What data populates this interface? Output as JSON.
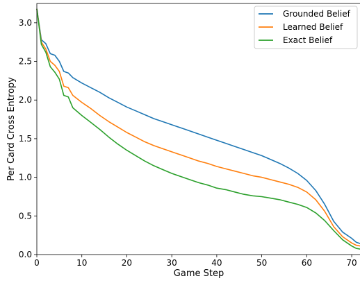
{
  "chart_data": {
    "type": "line",
    "title": "",
    "xlabel": "Game Step",
    "ylabel": "Per Card Cross Entropy",
    "xlim": [
      0,
      72
    ],
    "ylim": [
      0,
      3.25
    ],
    "xticks": [
      0,
      10,
      20,
      30,
      40,
      50,
      60,
      70
    ],
    "yticks": [
      0.0,
      0.5,
      1.0,
      1.5,
      2.0,
      2.5,
      3.0
    ],
    "xtick_labels": [
      "0",
      "10",
      "20",
      "30",
      "40",
      "50",
      "60",
      "70"
    ],
    "ytick_labels": [
      "0.0",
      "0.5",
      "1.0",
      "1.5",
      "2.0",
      "2.5",
      "3.0"
    ],
    "grid": false,
    "legend_position": "top-right",
    "series": [
      {
        "name": "Grounded Belief",
        "color": "#1f77b4",
        "x": [
          0,
          1,
          2,
          3,
          4,
          5,
          6,
          7,
          8,
          10,
          12,
          14,
          16,
          18,
          20,
          22,
          24,
          26,
          28,
          30,
          32,
          34,
          36,
          38,
          40,
          42,
          44,
          46,
          48,
          50,
          52,
          54,
          56,
          58,
          60,
          62,
          64,
          66,
          68,
          70,
          71,
          72
        ],
        "values": [
          3.18,
          2.78,
          2.73,
          2.6,
          2.58,
          2.5,
          2.37,
          2.35,
          2.29,
          2.22,
          2.16,
          2.1,
          2.03,
          1.97,
          1.91,
          1.86,
          1.81,
          1.76,
          1.72,
          1.68,
          1.64,
          1.6,
          1.56,
          1.52,
          1.48,
          1.44,
          1.4,
          1.36,
          1.32,
          1.28,
          1.23,
          1.18,
          1.12,
          1.05,
          0.96,
          0.83,
          0.65,
          0.43,
          0.29,
          0.21,
          0.16,
          0.14
        ]
      },
      {
        "name": "Learned Belief",
        "color": "#ff7f0e",
        "x": [
          0,
          1,
          2,
          3,
          4,
          5,
          6,
          7,
          8,
          10,
          12,
          14,
          16,
          18,
          20,
          22,
          24,
          26,
          28,
          30,
          32,
          34,
          36,
          38,
          40,
          42,
          44,
          46,
          48,
          50,
          52,
          54,
          56,
          58,
          60,
          62,
          64,
          66,
          68,
          70,
          71,
          72
        ],
        "values": [
          3.18,
          2.75,
          2.66,
          2.5,
          2.45,
          2.37,
          2.18,
          2.16,
          2.06,
          1.97,
          1.89,
          1.8,
          1.72,
          1.65,
          1.58,
          1.52,
          1.46,
          1.41,
          1.37,
          1.33,
          1.29,
          1.25,
          1.21,
          1.18,
          1.14,
          1.11,
          1.08,
          1.05,
          1.02,
          1.0,
          0.97,
          0.94,
          0.91,
          0.87,
          0.81,
          0.71,
          0.56,
          0.36,
          0.23,
          0.15,
          0.12,
          0.11
        ]
      },
      {
        "name": "Exact Belief",
        "color": "#2ca02c",
        "x": [
          0,
          1,
          2,
          3,
          4,
          5,
          6,
          7,
          8,
          10,
          12,
          14,
          16,
          18,
          20,
          22,
          24,
          26,
          28,
          30,
          32,
          34,
          36,
          38,
          40,
          42,
          44,
          46,
          48,
          50,
          52,
          54,
          56,
          58,
          60,
          62,
          64,
          66,
          68,
          70,
          71,
          72
        ],
        "values": [
          3.18,
          2.72,
          2.62,
          2.43,
          2.36,
          2.27,
          2.06,
          2.04,
          1.9,
          1.8,
          1.71,
          1.62,
          1.52,
          1.43,
          1.35,
          1.28,
          1.21,
          1.15,
          1.1,
          1.05,
          1.01,
          0.97,
          0.93,
          0.9,
          0.86,
          0.84,
          0.81,
          0.78,
          0.76,
          0.75,
          0.73,
          0.71,
          0.68,
          0.65,
          0.61,
          0.54,
          0.44,
          0.31,
          0.19,
          0.11,
          0.08,
          0.07
        ]
      }
    ]
  }
}
